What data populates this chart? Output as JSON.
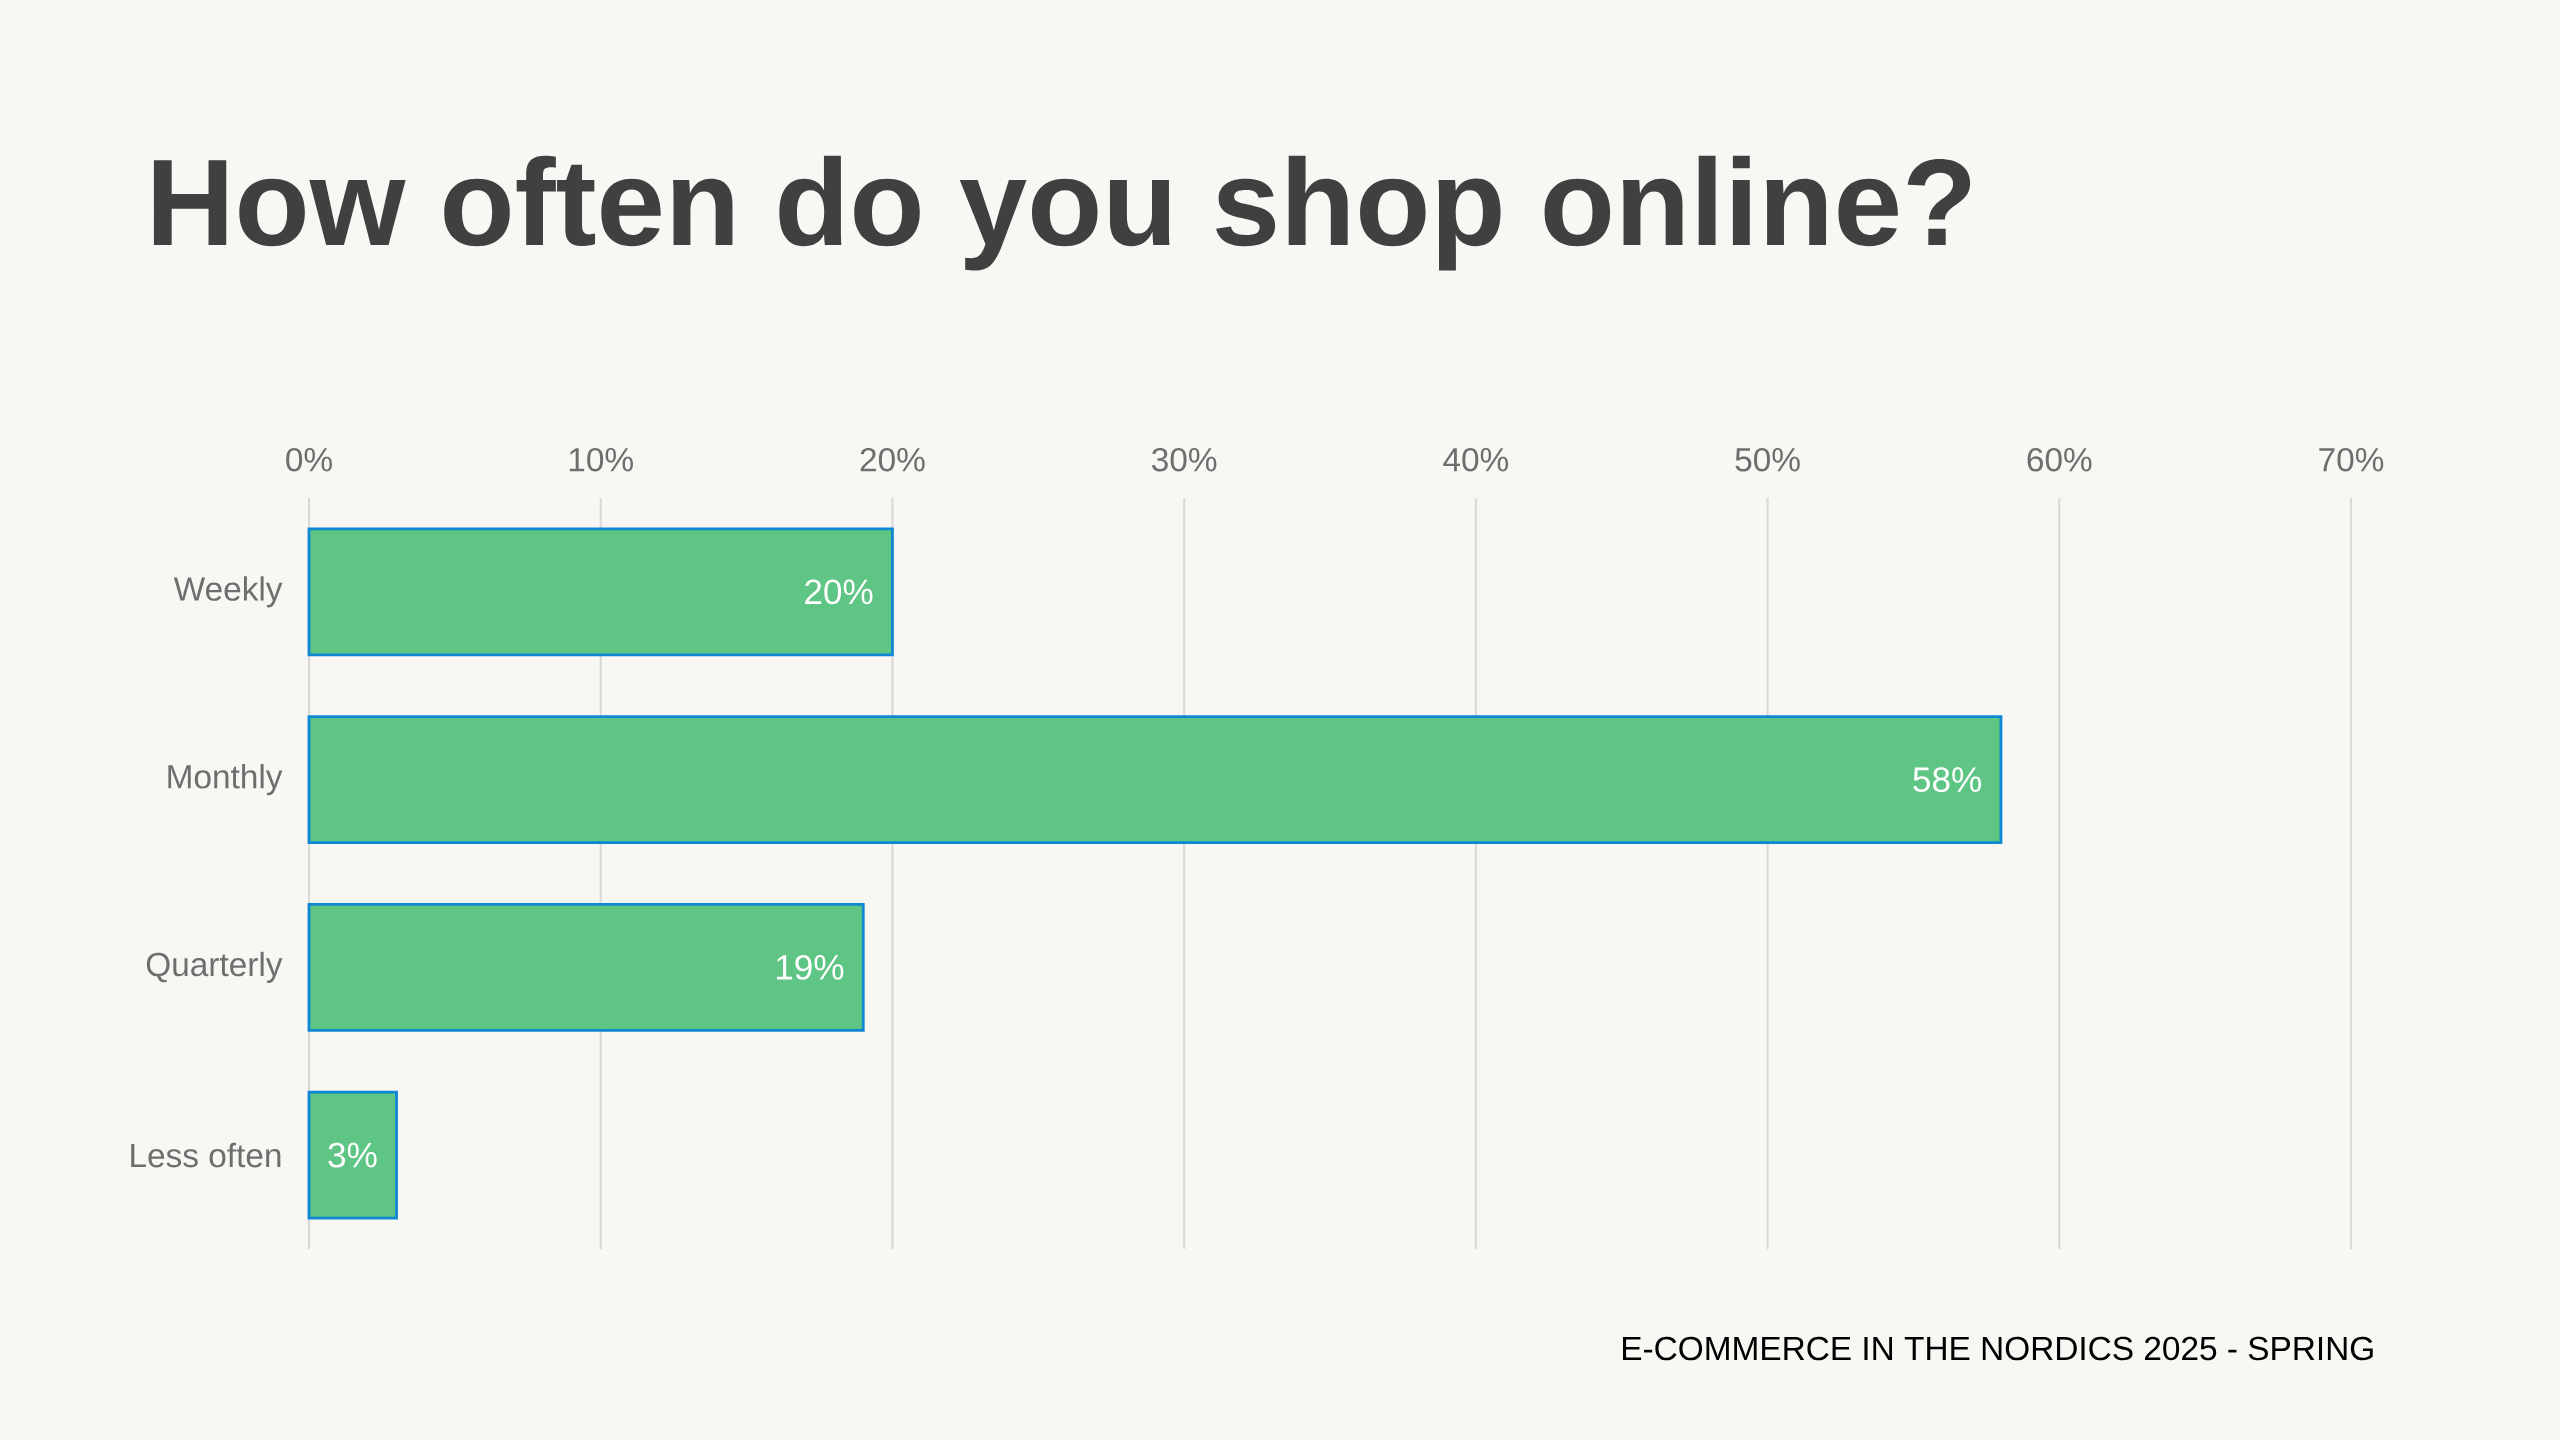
{
  "chart_data": {
    "type": "bar",
    "orientation": "horizontal",
    "title": "How often do you shop online?",
    "categories": [
      "Weekly",
      "Monthly",
      "Quarterly",
      "Less often"
    ],
    "values": [
      20,
      58,
      19,
      3
    ],
    "value_labels": [
      "20%",
      "58%",
      "19%",
      "3%"
    ],
    "color": "#5ec584",
    "xlim": [
      0,
      70
    ],
    "xticks": [
      {
        "value": 0,
        "label": "0%"
      },
      {
        "value": 10,
        "label": "10%"
      },
      {
        "value": 20,
        "label": "20%"
      },
      {
        "value": 30,
        "label": "30%"
      },
      {
        "value": 40,
        "label": "40%"
      },
      {
        "value": 50,
        "label": "50%"
      },
      {
        "value": 60,
        "label": "60%"
      },
      {
        "value": 70,
        "label": "70%"
      }
    ],
    "grid": "x",
    "annotations": [
      "E-COMMERCE IN THE NORDICS 2025 - SPRING"
    ]
  }
}
